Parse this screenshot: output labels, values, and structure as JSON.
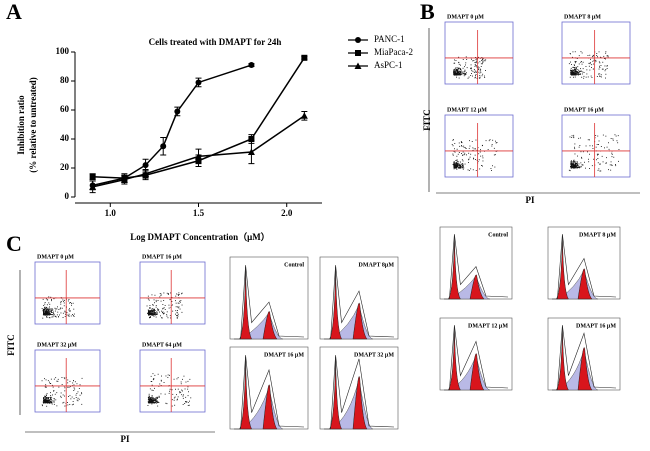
{
  "panel_letters": [
    "A",
    "B",
    "C"
  ],
  "chart_data": {
    "type": "line",
    "title": "Cells treated with DMAPT for 24h",
    "xlabel": "Log DMAPT Concentration（μM）",
    "ylabel": [
      "Inhibition ratio",
      "(% relative to untreated)"
    ],
    "xlim": [
      0.8,
      2.2
    ],
    "xticks": [
      {
        "value": 1,
        "label": "1.0"
      },
      1.5,
      {
        "value": 2,
        "label": "2.0"
      }
    ],
    "ylim": [
      0,
      100
    ],
    "yticks": [
      0,
      20,
      40,
      60,
      80,
      100
    ],
    "series": [
      {
        "name": "PANC-1",
        "marker": "circle",
        "color": "#000000",
        "x": [
          0.9,
          1.08,
          1.2,
          1.3,
          1.38,
          1.5,
          1.8
        ],
        "values": [
          8,
          13,
          22,
          35,
          59,
          79,
          91
        ],
        "errors": [
          3,
          3,
          4,
          6,
          3,
          3,
          1
        ]
      },
      {
        "name": "MiaPaca-2",
        "marker": "square",
        "color": "#000000",
        "x": [
          0.9,
          1.08,
          1.2,
          1.5,
          1.8,
          2.1
        ],
        "values": [
          14,
          13,
          15,
          25,
          40,
          96
        ],
        "errors": [
          2,
          2,
          3,
          4,
          3,
          1
        ]
      },
      {
        "name": "AsPC-1",
        "marker": "triangle",
        "color": "#000000",
        "x": [
          0.9,
          1.08,
          1.2,
          1.5,
          1.8,
          2.1
        ],
        "values": [
          7,
          12,
          16,
          28,
          31,
          56
        ],
        "errors": [
          4,
          3,
          3,
          5,
          8,
          3
        ]
      }
    ]
  },
  "panel_b": {
    "dot_plots": [
      "DMAPT 0 μM",
      "DMAPT 8 μM",
      "DMAPT 12 μM",
      "DMAPT 16 μM"
    ],
    "y_label": "FITC",
    "x_label": "PI",
    "histograms": [
      "Control",
      "DMAPT 8 μM",
      "DMAPT 12 μM",
      "DMAPT 16 μM"
    ]
  },
  "panel_c": {
    "dot_plots": [
      "DMAPT 0 μM",
      "DMAPT 16 μM",
      "DMAPT 32 μM",
      "DMAPT 64 μM"
    ],
    "y_label": "FITC",
    "x_label": "PI",
    "histograms": [
      "Control",
      "DMAPT 8μM",
      "DMAPT 16 μM",
      "DMAPT 32 μM"
    ]
  }
}
